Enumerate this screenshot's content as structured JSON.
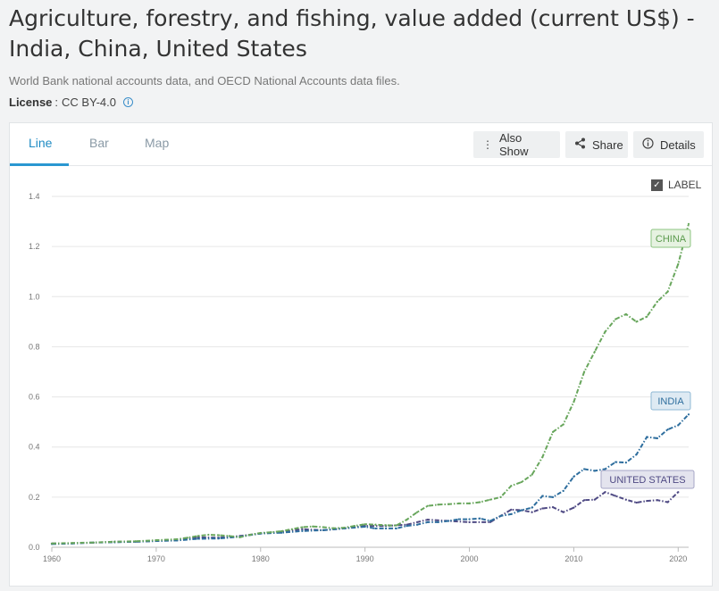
{
  "page": {
    "title": "Agriculture, forestry, and fishing, value added (current US$) - India, China, United States",
    "source": "World Bank national accounts data, and OECD National Accounts data files.",
    "license_label": "License",
    "license_sep": ":",
    "license_value": "CC BY-4.0",
    "info_icon": "i"
  },
  "tabs": [
    {
      "label": "Line",
      "active": true
    },
    {
      "label": "Bar",
      "active": false
    },
    {
      "label": "Map",
      "active": false
    }
  ],
  "toolbar": {
    "also_show_label": "Also Show",
    "share_label": "Share",
    "details_label": "Details",
    "also_show_icon": "vertical-dots-icon",
    "share_icon": "share-icon",
    "details_icon": "info-circle-icon"
  },
  "label_toggle": {
    "label": "LABEL",
    "checked": true
  },
  "colors": {
    "china": "#68a65c",
    "india": "#2e6e9e",
    "united_states": "#4f4a84",
    "accent": "#2a97d1"
  },
  "chart_data": {
    "type": "line",
    "title": "",
    "xlabel": "",
    "ylabel": "",
    "xlim": [
      1960,
      2021
    ],
    "ylim": [
      0,
      1.4
    ],
    "y_ticks": [
      "0.0",
      "0.2",
      "0.4",
      "0.6",
      "0.8",
      "1.0",
      "1.2",
      "1.4"
    ],
    "x_ticks": [
      "1960",
      "1970",
      "1980",
      "1990",
      "2000",
      "2010",
      "2020"
    ],
    "grid": true,
    "series": [
      {
        "name": "CHINA",
        "color": "#68a65c",
        "points": [
          [
            1960,
            0.015
          ],
          [
            1962,
            0.017
          ],
          [
            1964,
            0.019
          ],
          [
            1966,
            0.022
          ],
          [
            1968,
            0.024
          ],
          [
            1970,
            0.028
          ],
          [
            1972,
            0.032
          ],
          [
            1973,
            0.038
          ],
          [
            1974,
            0.045
          ],
          [
            1975,
            0.05
          ],
          [
            1976,
            0.048
          ],
          [
            1977,
            0.045
          ],
          [
            1978,
            0.04
          ],
          [
            1979,
            0.05
          ],
          [
            1980,
            0.057
          ],
          [
            1981,
            0.06
          ],
          [
            1982,
            0.064
          ],
          [
            1983,
            0.072
          ],
          [
            1984,
            0.08
          ],
          [
            1985,
            0.083
          ],
          [
            1986,
            0.08
          ],
          [
            1987,
            0.076
          ],
          [
            1988,
            0.078
          ],
          [
            1989,
            0.085
          ],
          [
            1990,
            0.092
          ],
          [
            1991,
            0.09
          ],
          [
            1992,
            0.088
          ],
          [
            1993,
            0.087
          ],
          [
            1994,
            0.11
          ],
          [
            1995,
            0.14
          ],
          [
            1996,
            0.165
          ],
          [
            1997,
            0.17
          ],
          [
            1998,
            0.172
          ],
          [
            1999,
            0.175
          ],
          [
            2000,
            0.175
          ],
          [
            2001,
            0.18
          ],
          [
            2002,
            0.19
          ],
          [
            2003,
            0.2
          ],
          [
            2004,
            0.245
          ],
          [
            2005,
            0.26
          ],
          [
            2006,
            0.29
          ],
          [
            2007,
            0.36
          ],
          [
            2008,
            0.46
          ],
          [
            2009,
            0.49
          ],
          [
            2010,
            0.58
          ],
          [
            2011,
            0.7
          ],
          [
            2012,
            0.78
          ],
          [
            2013,
            0.86
          ],
          [
            2014,
            0.91
          ],
          [
            2015,
            0.93
          ],
          [
            2016,
            0.9
          ],
          [
            2017,
            0.92
          ],
          [
            2018,
            0.98
          ],
          [
            2019,
            1.02
          ],
          [
            2020,
            1.13
          ],
          [
            2021,
            1.29
          ]
        ]
      },
      {
        "name": "INDIA",
        "color": "#2e6e9e",
        "points": [
          [
            1960,
            0.013
          ],
          [
            1962,
            0.015
          ],
          [
            1964,
            0.019
          ],
          [
            1966,
            0.02
          ],
          [
            1968,
            0.022
          ],
          [
            1970,
            0.025
          ],
          [
            1972,
            0.027
          ],
          [
            1974,
            0.034
          ],
          [
            1976,
            0.035
          ],
          [
            1978,
            0.042
          ],
          [
            1980,
            0.055
          ],
          [
            1982,
            0.058
          ],
          [
            1984,
            0.065
          ],
          [
            1986,
            0.068
          ],
          [
            1988,
            0.075
          ],
          [
            1990,
            0.082
          ],
          [
            1991,
            0.075
          ],
          [
            1992,
            0.075
          ],
          [
            1993,
            0.075
          ],
          [
            1994,
            0.085
          ],
          [
            1995,
            0.09
          ],
          [
            1996,
            0.1
          ],
          [
            1997,
            0.1
          ],
          [
            1998,
            0.105
          ],
          [
            1999,
            0.112
          ],
          [
            2000,
            0.112
          ],
          [
            2001,
            0.115
          ],
          [
            2002,
            0.105
          ],
          [
            2003,
            0.125
          ],
          [
            2004,
            0.132
          ],
          [
            2005,
            0.148
          ],
          [
            2006,
            0.158
          ],
          [
            2007,
            0.205
          ],
          [
            2008,
            0.2
          ],
          [
            2009,
            0.225
          ],
          [
            2010,
            0.282
          ],
          [
            2011,
            0.312
          ],
          [
            2012,
            0.305
          ],
          [
            2013,
            0.312
          ],
          [
            2014,
            0.34
          ],
          [
            2015,
            0.338
          ],
          [
            2016,
            0.37
          ],
          [
            2017,
            0.44
          ],
          [
            2018,
            0.435
          ],
          [
            2019,
            0.47
          ],
          [
            2020,
            0.487
          ],
          [
            2021,
            0.53
          ]
        ]
      },
      {
        "name": "UNITED STATES",
        "color": "#4f4a84",
        "points": [
          [
            1960,
            0.015
          ],
          [
            1962,
            0.016
          ],
          [
            1964,
            0.018
          ],
          [
            1966,
            0.022
          ],
          [
            1968,
            0.022
          ],
          [
            1970,
            0.025
          ],
          [
            1972,
            0.03
          ],
          [
            1974,
            0.04
          ],
          [
            1976,
            0.038
          ],
          [
            1978,
            0.045
          ],
          [
            1980,
            0.055
          ],
          [
            1982,
            0.062
          ],
          [
            1984,
            0.072
          ],
          [
            1986,
            0.068
          ],
          [
            1988,
            0.075
          ],
          [
            1990,
            0.085
          ],
          [
            1992,
            0.085
          ],
          [
            1994,
            0.09
          ],
          [
            1996,
            0.11
          ],
          [
            1998,
            0.105
          ],
          [
            2000,
            0.1
          ],
          [
            2002,
            0.1
          ],
          [
            2004,
            0.15
          ],
          [
            2005,
            0.148
          ],
          [
            2006,
            0.14
          ],
          [
            2007,
            0.155
          ],
          [
            2008,
            0.16
          ],
          [
            2009,
            0.14
          ],
          [
            2010,
            0.158
          ],
          [
            2011,
            0.188
          ],
          [
            2012,
            0.19
          ],
          [
            2013,
            0.22
          ],
          [
            2014,
            0.205
          ],
          [
            2015,
            0.19
          ],
          [
            2016,
            0.178
          ],
          [
            2017,
            0.185
          ],
          [
            2018,
            0.188
          ],
          [
            2019,
            0.18
          ],
          [
            2020,
            0.22
          ]
        ]
      }
    ],
    "series_labels": [
      "CHINA",
      "INDIA",
      "UNITED STATES"
    ]
  }
}
